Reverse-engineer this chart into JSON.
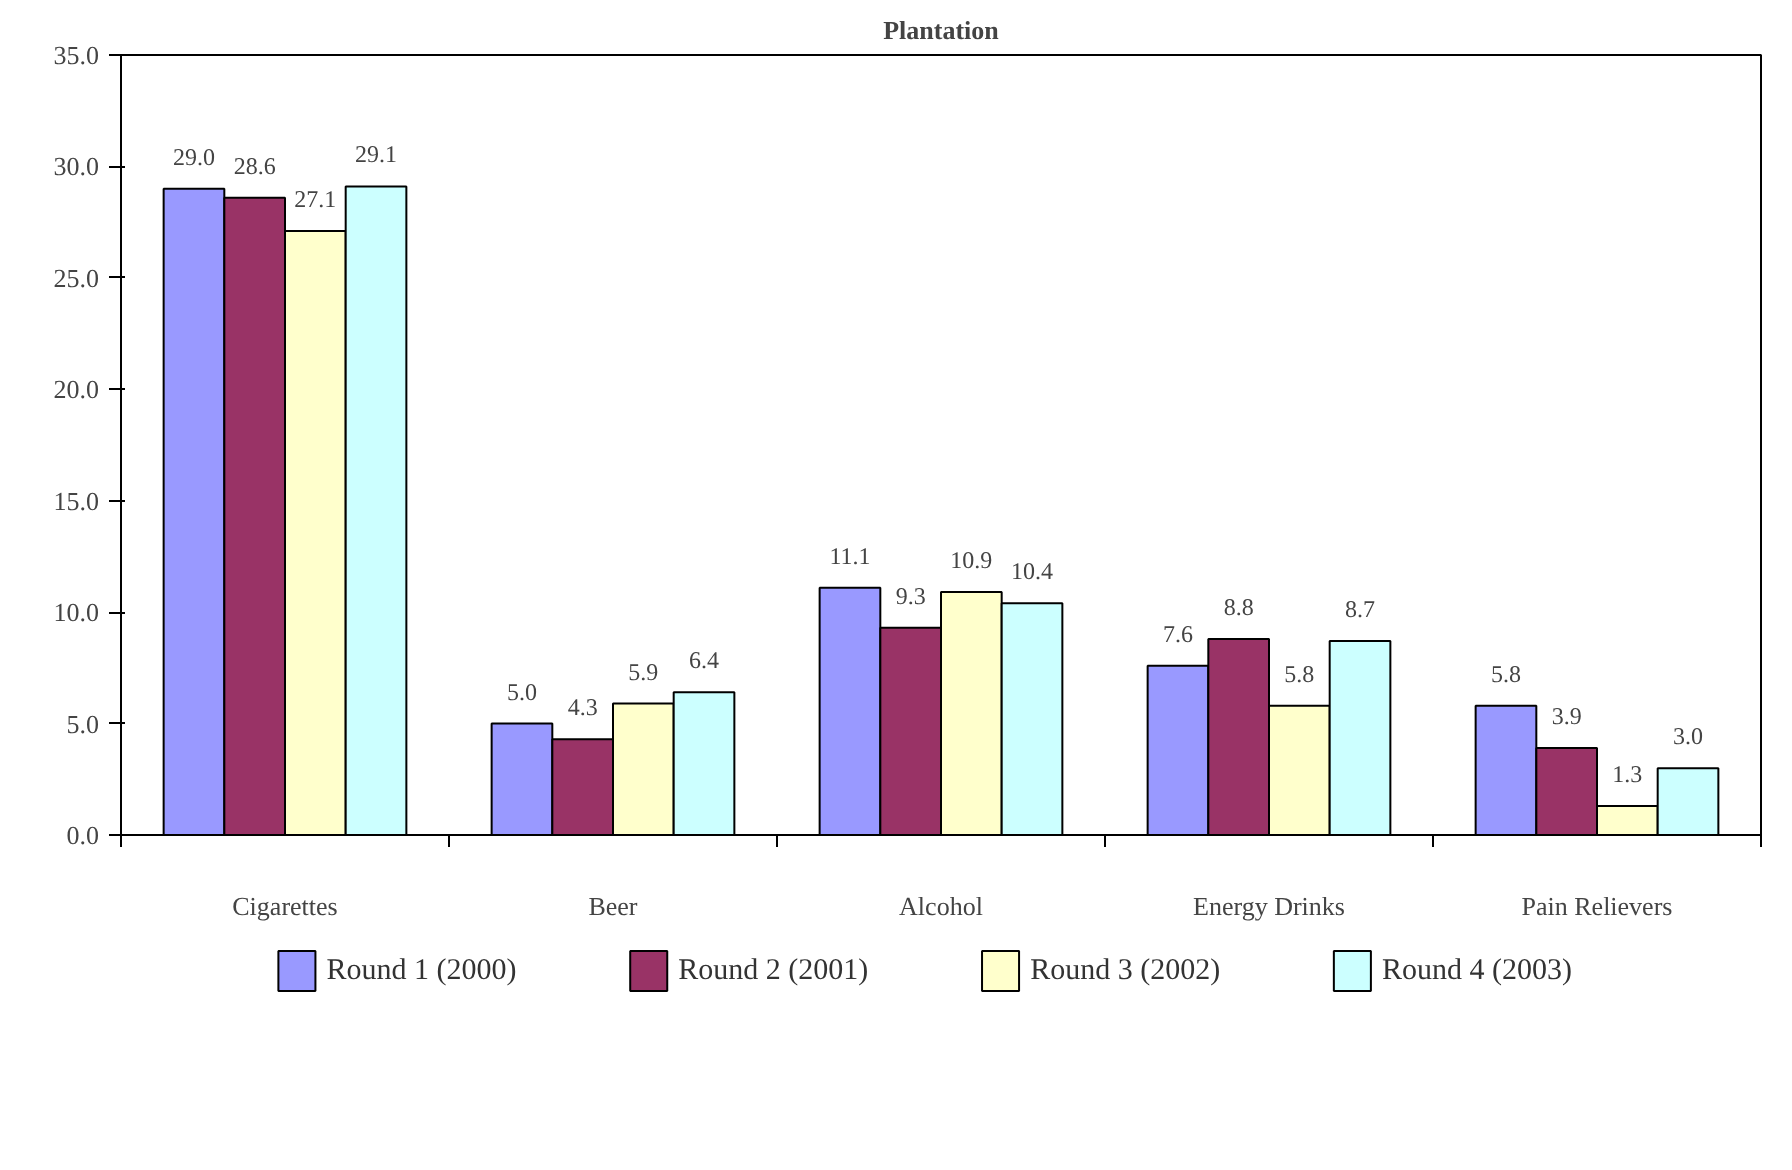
{
  "chart_data": {
    "type": "bar",
    "title": "Plantation",
    "categories": [
      "Cigarettes",
      "Beer",
      "Alcohol",
      "Energy Drinks",
      "Pain Relievers"
    ],
    "series": [
      {
        "name": "Round 1 (2000)",
        "color": "#9999ff",
        "values": [
          29.0,
          5.0,
          11.1,
          7.6,
          5.8
        ],
        "value_labels": [
          "29.0",
          "5.0",
          "11.1",
          "7.6",
          "5.8"
        ]
      },
      {
        "name": "Round 2 (2001)",
        "color": "#993366",
        "values": [
          28.6,
          4.3,
          9.3,
          8.8,
          3.9
        ],
        "value_labels": [
          "28.6",
          "4.3",
          "9.3",
          "8.8",
          "3.9"
        ]
      },
      {
        "name": "Round 3 (2002)",
        "color": "#ffffcc",
        "values": [
          27.1,
          5.9,
          10.9,
          5.8,
          1.3
        ],
        "value_labels": [
          "27.1",
          "5.9",
          "10.9",
          "5.8",
          "1.3"
        ]
      },
      {
        "name": "Round 4 (2003)",
        "color": "#ccffff",
        "values": [
          29.1,
          6.4,
          10.4,
          8.7,
          3.0
        ],
        "value_labels": [
          "29.1",
          "6.4",
          "10.4",
          "8.7",
          "3.0"
        ]
      }
    ],
    "ylim": [
      0,
      35
    ],
    "yticks": [
      {
        "value": 0,
        "label": "0.0"
      },
      {
        "value": 5,
        "label": "5.0"
      },
      {
        "value": 10,
        "label": "10.0"
      },
      {
        "value": 15,
        "label": "15.0"
      },
      {
        "value": 20,
        "label": "20.0"
      },
      {
        "value": 25,
        "label": "25.0"
      },
      {
        "value": 30,
        "label": "30.0"
      },
      {
        "value": 35,
        "label": "35.0"
      }
    ],
    "grid": false,
    "legend": "bottom"
  }
}
